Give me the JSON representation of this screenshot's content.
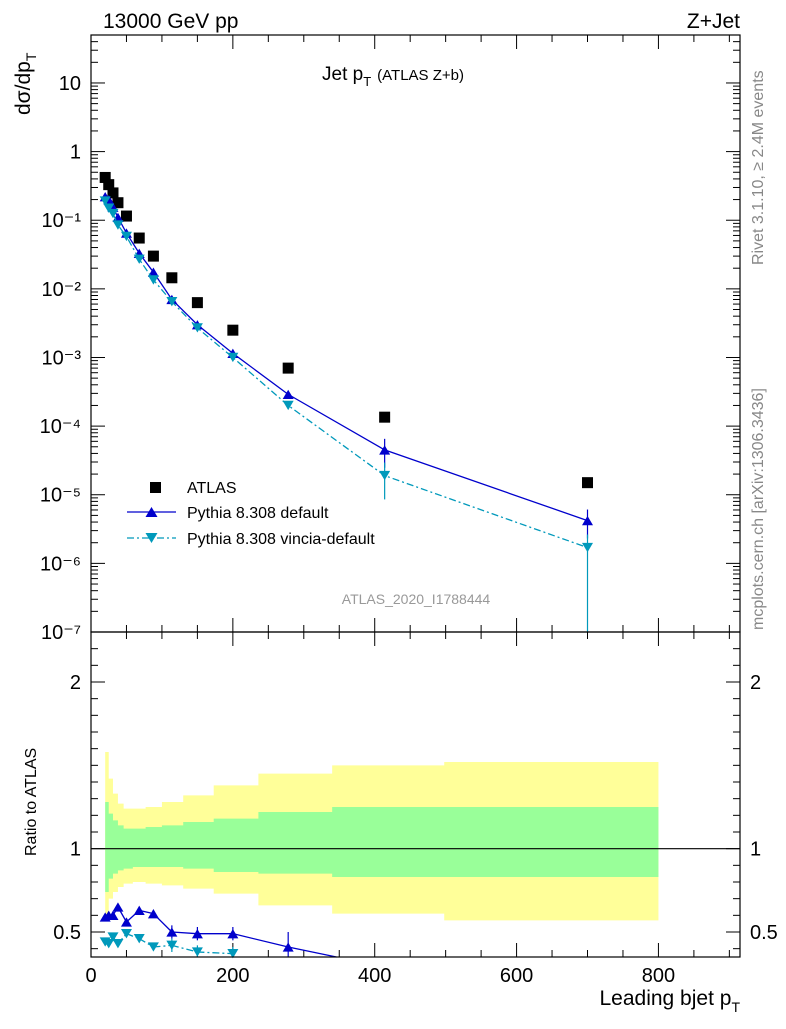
{
  "header": {
    "energy_label": "13000 GeV pp",
    "process_label": "Z+Jet"
  },
  "side_labels": {
    "rivet": "Rivet 3.1.10, ≥ 2.4M events",
    "mcplots": "mcplots.cern.ch [arXiv:1306.3436]"
  },
  "chart_data": [
    {
      "type": "scatter",
      "title": "Jet p",
      "title_sub": "T",
      "title_suffix": "(ATLAS Z+b)",
      "ylabel": "dσ/dp",
      "ylabel_sub": "T",
      "yscale": "log",
      "ylim": [
        1e-07,
        50
      ],
      "xlim": [
        0,
        915
      ],
      "watermark": "ATLAS_2020_I1788444",
      "y_tick_labels": [
        "10",
        "1",
        "10⁻¹",
        "10⁻²",
        "10⁻³",
        "10⁻⁴",
        "10⁻⁵",
        "10⁻⁶",
        "10⁻⁷"
      ],
      "legend_position": "bottom-left",
      "x": [
        20,
        25,
        31,
        38,
        46,
        59,
        77,
        100,
        130,
        173,
        236,
        340,
        498,
        800
      ],
      "series": [
        {
          "name": "ATLAS",
          "marker": "square",
          "color": "#000000",
          "x": [
            20,
            25,
            31,
            38,
            50,
            68,
            88,
            114,
            150,
            200,
            278,
            414,
            700
          ],
          "values": [
            0.42,
            0.33,
            0.25,
            0.18,
            0.115,
            0.055,
            0.03,
            0.0145,
            0.0063,
            0.0025,
            0.0007,
            0.000135,
            1.5e-05
          ]
        },
        {
          "name": "Pythia 8.308 default",
          "marker": "triangle-up",
          "color": "#0000cc",
          "x": [
            20,
            25,
            31,
            38,
            50,
            68,
            88,
            114,
            150,
            200,
            278,
            414,
            700
          ],
          "values": [
            0.22,
            0.2,
            0.155,
            0.11,
            0.065,
            0.033,
            0.0175,
            0.007,
            0.003,
            0.00115,
            0.00029,
            4.5e-05,
            4.2e-06
          ]
        },
        {
          "name": "Pythia 8.308 vincia-default",
          "marker": "triangle-down",
          "color": "#0099bb",
          "x": [
            20,
            25,
            31,
            38,
            50,
            68,
            88,
            114,
            150,
            200,
            278,
            414,
            700
          ],
          "values": [
            0.19,
            0.15,
            0.125,
            0.085,
            0.058,
            0.027,
            0.0135,
            0.0065,
            0.0027,
            0.001,
            0.0002,
            1.9e-05,
            1.7e-06
          ]
        }
      ]
    },
    {
      "type": "scatter",
      "ylabel": "Ratio to ATLAS",
      "xlabel": "Leading bjet p",
      "xlabel_sub": "T",
      "ylim": [
        0.35,
        2.3
      ],
      "xlim": [
        0,
        915
      ],
      "y_ticks": [
        0.5,
        1,
        2
      ],
      "y_tick_labels": [
        "0.5",
        "1",
        "2"
      ],
      "x_ticks": [
        0,
        200,
        400,
        600,
        800
      ],
      "x_tick_labels": [
        "0",
        "200",
        "400",
        "600",
        "800"
      ],
      "bins": [
        20,
        25,
        31,
        38,
        46,
        59,
        77,
        100,
        130,
        173,
        236,
        340,
        498,
        800
      ],
      "band_green": [
        [
          0.74,
          1.28
        ],
        [
          0.82,
          1.21
        ],
        [
          0.85,
          1.17
        ],
        [
          0.87,
          1.14
        ],
        [
          0.88,
          1.12
        ],
        [
          0.89,
          1.12
        ],
        [
          0.89,
          1.13
        ],
        [
          0.89,
          1.14
        ],
        [
          0.88,
          1.16
        ],
        [
          0.86,
          1.18
        ],
        [
          0.85,
          1.22
        ],
        [
          0.83,
          1.25
        ],
        [
          0.83,
          1.25
        ]
      ],
      "band_yellow": [
        [
          0.58,
          1.58
        ],
        [
          0.7,
          1.42
        ],
        [
          0.74,
          1.33
        ],
        [
          0.77,
          1.27
        ],
        [
          0.79,
          1.24
        ],
        [
          0.8,
          1.24
        ],
        [
          0.79,
          1.25
        ],
        [
          0.78,
          1.28
        ],
        [
          0.76,
          1.32
        ],
        [
          0.73,
          1.38
        ],
        [
          0.66,
          1.45
        ],
        [
          0.61,
          1.5
        ],
        [
          0.57,
          1.52
        ]
      ],
      "series": [
        {
          "name": "Pythia 8.308 default",
          "marker": "triangle-up",
          "color": "#0000cc",
          "x": [
            20,
            25,
            31,
            38,
            50,
            68,
            88,
            114,
            150,
            200,
            278,
            414
          ],
          "values": [
            0.59,
            0.6,
            0.6,
            0.65,
            0.56,
            0.63,
            0.61,
            0.5,
            0.49,
            0.49,
            0.41,
            0.29
          ]
        },
        {
          "name": "Pythia 8.308 vincia-default",
          "marker": "triangle-down",
          "color": "#0099bb",
          "x": [
            20,
            25,
            31,
            38,
            50,
            68,
            88,
            114,
            150,
            200
          ],
          "values": [
            0.44,
            0.43,
            0.47,
            0.43,
            0.49,
            0.46,
            0.41,
            0.42,
            0.38,
            0.37
          ]
        }
      ]
    }
  ]
}
